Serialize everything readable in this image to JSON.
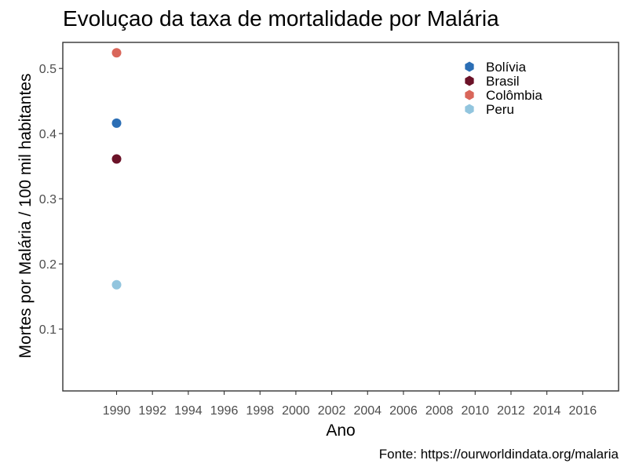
{
  "chart_data": {
    "type": "scatter",
    "title": "Evoluçao da taxa de mortalidade por Malária",
    "xlabel": "Ano",
    "ylabel": "Mortes por Malária / 100 mil habitantes",
    "caption": "Fonte: https://ourworldindata.org/malaria",
    "xlim": [
      1987,
      2018
    ],
    "ylim": [
      0.005,
      0.54
    ],
    "x_ticks": [
      1990,
      1992,
      1994,
      1996,
      1998,
      2000,
      2002,
      2004,
      2006,
      2008,
      2010,
      2012,
      2014,
      2016
    ],
    "y_ticks": [
      0.1,
      0.2,
      0.3,
      0.4,
      0.5
    ],
    "grid": false,
    "legend_position": "top-right",
    "series": [
      {
        "name": "Bolívia",
        "color": "#2b6eb5",
        "points": [
          {
            "x": 1990,
            "y": 0.416
          }
        ]
      },
      {
        "name": "Brasil",
        "color": "#6b1228",
        "points": [
          {
            "x": 1990,
            "y": 0.361
          }
        ]
      },
      {
        "name": "Colômbia",
        "color": "#d9665a",
        "points": [
          {
            "x": 1990,
            "y": 0.524
          }
        ]
      },
      {
        "name": "Peru",
        "color": "#92c5de",
        "points": [
          {
            "x": 1990,
            "y": 0.168
          }
        ]
      }
    ]
  }
}
